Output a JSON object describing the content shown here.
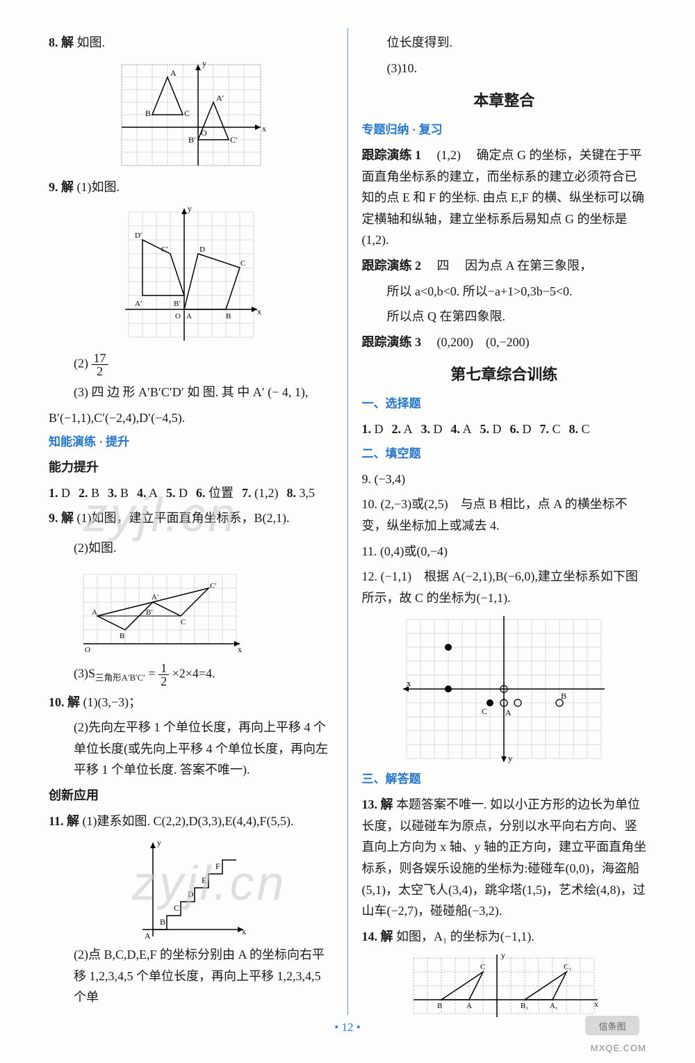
{
  "left": {
    "q8": {
      "label": "8. 解",
      "text": "如图."
    },
    "q9": {
      "label": "9. 解",
      "part1": "(1)如图.",
      "part2_pre": "(2)",
      "frac_n": "17",
      "frac_d": "2",
      "part3": "(3) 四 边 形 A′B′C′D′ 如 图. 其 中 A′ (− 4, 1),",
      "part3b": "B′(−1,1),C′(−2,4),D′(−4,5)."
    },
    "section1": "知能演练 · 提升",
    "ability": "能力提升",
    "ans1": [
      {
        "n": "1.",
        "v": "D"
      },
      {
        "n": "2.",
        "v": "B"
      },
      {
        "n": "3.",
        "v": "B"
      },
      {
        "n": "4.",
        "v": "A"
      },
      {
        "n": "5.",
        "v": "D"
      },
      {
        "n": "6.",
        "v": "位置"
      },
      {
        "n": "7.",
        "v": "(1,2)"
      },
      {
        "n": "8.",
        "v": "3,5"
      }
    ],
    "q9b": {
      "label": "9. 解",
      "text": "(1)如图，建立平面直角坐标系，B(2,1)."
    },
    "q9b_part2": "(2)如图.",
    "q9b_part3_pre": "(3)S",
    "q9b_sub": "三角形A′B′C′",
    "q9b_part3_mid": "=",
    "q9b_frac_n": "1",
    "q9b_frac_d": "2",
    "q9b_part3_post": "×2×4=4.",
    "q10": {
      "label": "10. 解",
      "part1": "(1)(3,−3)；",
      "part2": "(2)先向左平移 1 个单位长度，再向上平移 4 个单位长度(或先向上平移 4 个单位长度，再向左平移 1 个单位长度. 答案不唯一)."
    },
    "innov": "创新应用",
    "q11": {
      "label": "11. 解",
      "part1": "(1)建系如图. C(2,2),D(3,3),E(4,4),F(5,5).",
      "part2": "(2)点 B,C,D,E,F 的坐标分别由 A 的坐标向右平移 1,2,3,4,5 个单位长度，再向上平移 1,2,3,4,5 个单"
    },
    "fig1": {
      "labels": [
        "y",
        "A",
        "B",
        "C",
        "A′",
        "B′",
        "C′",
        "O",
        "x"
      ]
    },
    "fig2": {
      "labels": [
        "y",
        "D′",
        "D",
        "C′",
        "C",
        "B′",
        "B",
        "A′",
        "A",
        "O",
        "x"
      ]
    },
    "fig3": {
      "labels": [
        "A′",
        "C′",
        "A",
        "B′",
        "C",
        "B",
        "O",
        "x"
      ]
    },
    "fig4": {
      "labels": [
        "y",
        "F",
        "E",
        "D",
        "C",
        "B",
        "A",
        "x"
      ]
    }
  },
  "right": {
    "cont1": "位长度得到.",
    "cont2": "(3)10.",
    "title1": "本章整合",
    "sec_blue1": "专题归纳 · 复习",
    "track1": {
      "label": "跟踪演练 1",
      "ans": "(1,2)",
      "text": "确定点 G 的坐标，关键在于平面直角坐标系的建立，而坐标系的建立必须符合已知的点 E 和 F 的坐标. 由点 E,F 的横、纵坐标可以确定横轴和纵轴，建立坐标系后易知点 G 的坐标是(1,2)."
    },
    "track2": {
      "label": "跟踪演练 2",
      "ans": "四",
      "l1": "因为点 A 在第三象限，",
      "l2": "所以 a<0,b<0. 所以−a+1>0,3b−5<0.",
      "l3": "所以点 Q 在第四象限."
    },
    "track3": {
      "label": "跟踪演练 3",
      "ans": "(0,200)　(0,−200)"
    },
    "title2": "第七章综合训练",
    "sec_a": "一、选择题",
    "ans_select": [
      {
        "n": "1.",
        "v": "D"
      },
      {
        "n": "2.",
        "v": "A"
      },
      {
        "n": "3.",
        "v": "D"
      },
      {
        "n": "4.",
        "v": "A"
      },
      {
        "n": "5.",
        "v": "D"
      },
      {
        "n": "6.",
        "v": "D"
      },
      {
        "n": "7.",
        "v": "C"
      },
      {
        "n": "8.",
        "v": "C"
      }
    ],
    "sec_b": "二、填空题",
    "q9r": "9. (−3,4)",
    "q10r": "10. (2,−3)或(2,5)　与点 B 相比，点 A 的横坐标不变，纵坐标加上或减去 4.",
    "q11r": "11. (0,4)或(0,−4)",
    "q12r": {
      "pre": "12. (−1,1)　根据 A(−2,1),B(−6,0),建立坐标系如下图所示，故 C 的坐标为(−1,1)."
    },
    "sec_c": "三、解答题",
    "q13r": {
      "label": "13. 解",
      "text": "本题答案不唯一. 如以小正方形的边长为单位长度，以碰碰车为原点，分别以水平向右方向、竖直向上方向为 x 轴、y 轴的正方向，建立平面直角坐标系，则各娱乐设施的坐标为:碰碰车(0,0)，海盗船(5,1)，太空飞人(3,4)，跳伞塔(1,5)，艺术绘(4,8)，过山车(−2,7)，碰碰船(−3,2)."
    },
    "q14r": {
      "label": "14. 解",
      "text": "如图，A₁ 的坐标为(−1,1)."
    },
    "fig5": {
      "labels": [
        "x",
        "y",
        "A",
        "B",
        "C"
      ]
    },
    "fig6": {
      "labels": [
        "y",
        "C",
        "C₁",
        "B",
        "A",
        "B₁",
        "A₁",
        "x"
      ]
    }
  },
  "watermark": "zyjl.cn",
  "page_number": "12",
  "bottom_logo": "信条图",
  "site": "MXQE.COM",
  "colors": {
    "blue": "#2677c9",
    "grid": "#c0c0c0",
    "black": "#1a1a1a",
    "bg": "#fdfdfb"
  }
}
